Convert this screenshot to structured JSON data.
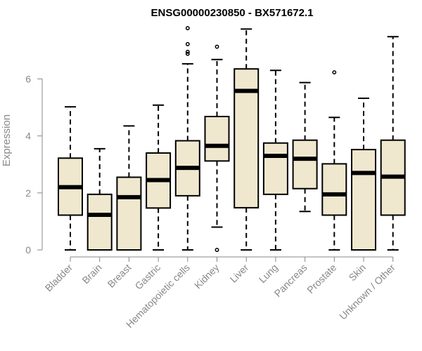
{
  "chart_data": {
    "type": "boxplot",
    "title": "ENSG00000230850 - BX571672.1",
    "xlabel": "",
    "ylabel": "Expression",
    "ylim": [
      0,
      7.8
    ],
    "yticks": [
      0,
      2,
      4,
      6
    ],
    "box_fill": "#efe8cf",
    "categories": [
      "Bladder",
      "Brain",
      "Breast",
      "Gastric",
      "Hematopoietic cells",
      "Kidney",
      "Liver",
      "Lung",
      "Pancreas",
      "Prostate",
      "Skin",
      "Unknown / Other"
    ],
    "boxes": [
      {
        "whisker_low": 0,
        "q1": 1.22,
        "median": 2.2,
        "q3": 3.22,
        "whisker_high": 5.02,
        "outliers": []
      },
      {
        "whisker_low": 0,
        "q1": 0,
        "median": 1.23,
        "q3": 1.95,
        "whisker_high": 3.55,
        "outliers": []
      },
      {
        "whisker_low": 0,
        "q1": 0,
        "median": 1.85,
        "q3": 2.55,
        "whisker_high": 4.35,
        "outliers": []
      },
      {
        "whisker_low": 0,
        "q1": 1.47,
        "median": 2.45,
        "q3": 3.4,
        "whisker_high": 5.08,
        "outliers": []
      },
      {
        "whisker_low": 0,
        "q1": 1.9,
        "median": 2.88,
        "q3": 3.83,
        "whisker_high": 6.53,
        "outliers": [
          6.88,
          6.95,
          7.22,
          7.78
        ]
      },
      {
        "whisker_low": 0.8,
        "q1": 3.12,
        "median": 3.65,
        "q3": 4.68,
        "whisker_high": 6.68,
        "outliers": [
          0,
          7.13
        ]
      },
      {
        "whisker_low": 0,
        "q1": 1.48,
        "median": 5.58,
        "q3": 6.35,
        "whisker_high": 7.75,
        "outliers": []
      },
      {
        "whisker_low": 0,
        "q1": 1.95,
        "median": 3.3,
        "q3": 3.75,
        "whisker_high": 6.3,
        "outliers": []
      },
      {
        "whisker_low": 1.35,
        "q1": 2.15,
        "median": 3.2,
        "q3": 3.85,
        "whisker_high": 5.87,
        "outliers": []
      },
      {
        "whisker_low": 0,
        "q1": 1.22,
        "median": 1.95,
        "q3": 3.02,
        "whisker_high": 4.65,
        "outliers": [
          6.23
        ]
      },
      {
        "whisker_low": 0,
        "q1": 0,
        "median": 2.7,
        "q3": 3.52,
        "whisker_high": 5.32,
        "outliers": []
      },
      {
        "whisker_low": 0,
        "q1": 1.22,
        "median": 2.57,
        "q3": 3.85,
        "whisker_high": 7.48,
        "outliers": []
      }
    ]
  }
}
